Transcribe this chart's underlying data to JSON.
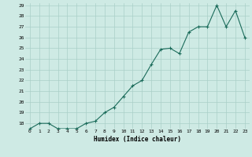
{
  "x": [
    0,
    1,
    2,
    3,
    4,
    5,
    6,
    7,
    8,
    9,
    10,
    11,
    12,
    13,
    14,
    15,
    16,
    17,
    18,
    19,
    20,
    21,
    22,
    23
  ],
  "y": [
    17.5,
    18.0,
    18.0,
    17.5,
    17.5,
    17.5,
    18.0,
    18.2,
    19.0,
    19.5,
    20.5,
    21.5,
    22.0,
    23.5,
    24.9,
    25.0,
    24.5,
    26.5,
    27.0,
    27.0,
    29.0,
    27.0,
    28.5,
    26.0
  ],
  "xlabel": "Humidex (Indice chaleur)",
  "ylim": [
    17.5,
    29.2
  ],
  "xlim": [
    -0.5,
    23.5
  ],
  "yticks": [
    18,
    19,
    20,
    21,
    22,
    23,
    24,
    25,
    26,
    27,
    28,
    29
  ],
  "xticks": [
    0,
    1,
    2,
    3,
    4,
    5,
    6,
    7,
    8,
    9,
    10,
    11,
    12,
    13,
    14,
    15,
    16,
    17,
    18,
    19,
    20,
    21,
    22,
    23
  ],
  "line_color": "#1a6b5a",
  "marker": "+",
  "bg_color": "#ceeae4",
  "grid_color": "#aacfc8"
}
